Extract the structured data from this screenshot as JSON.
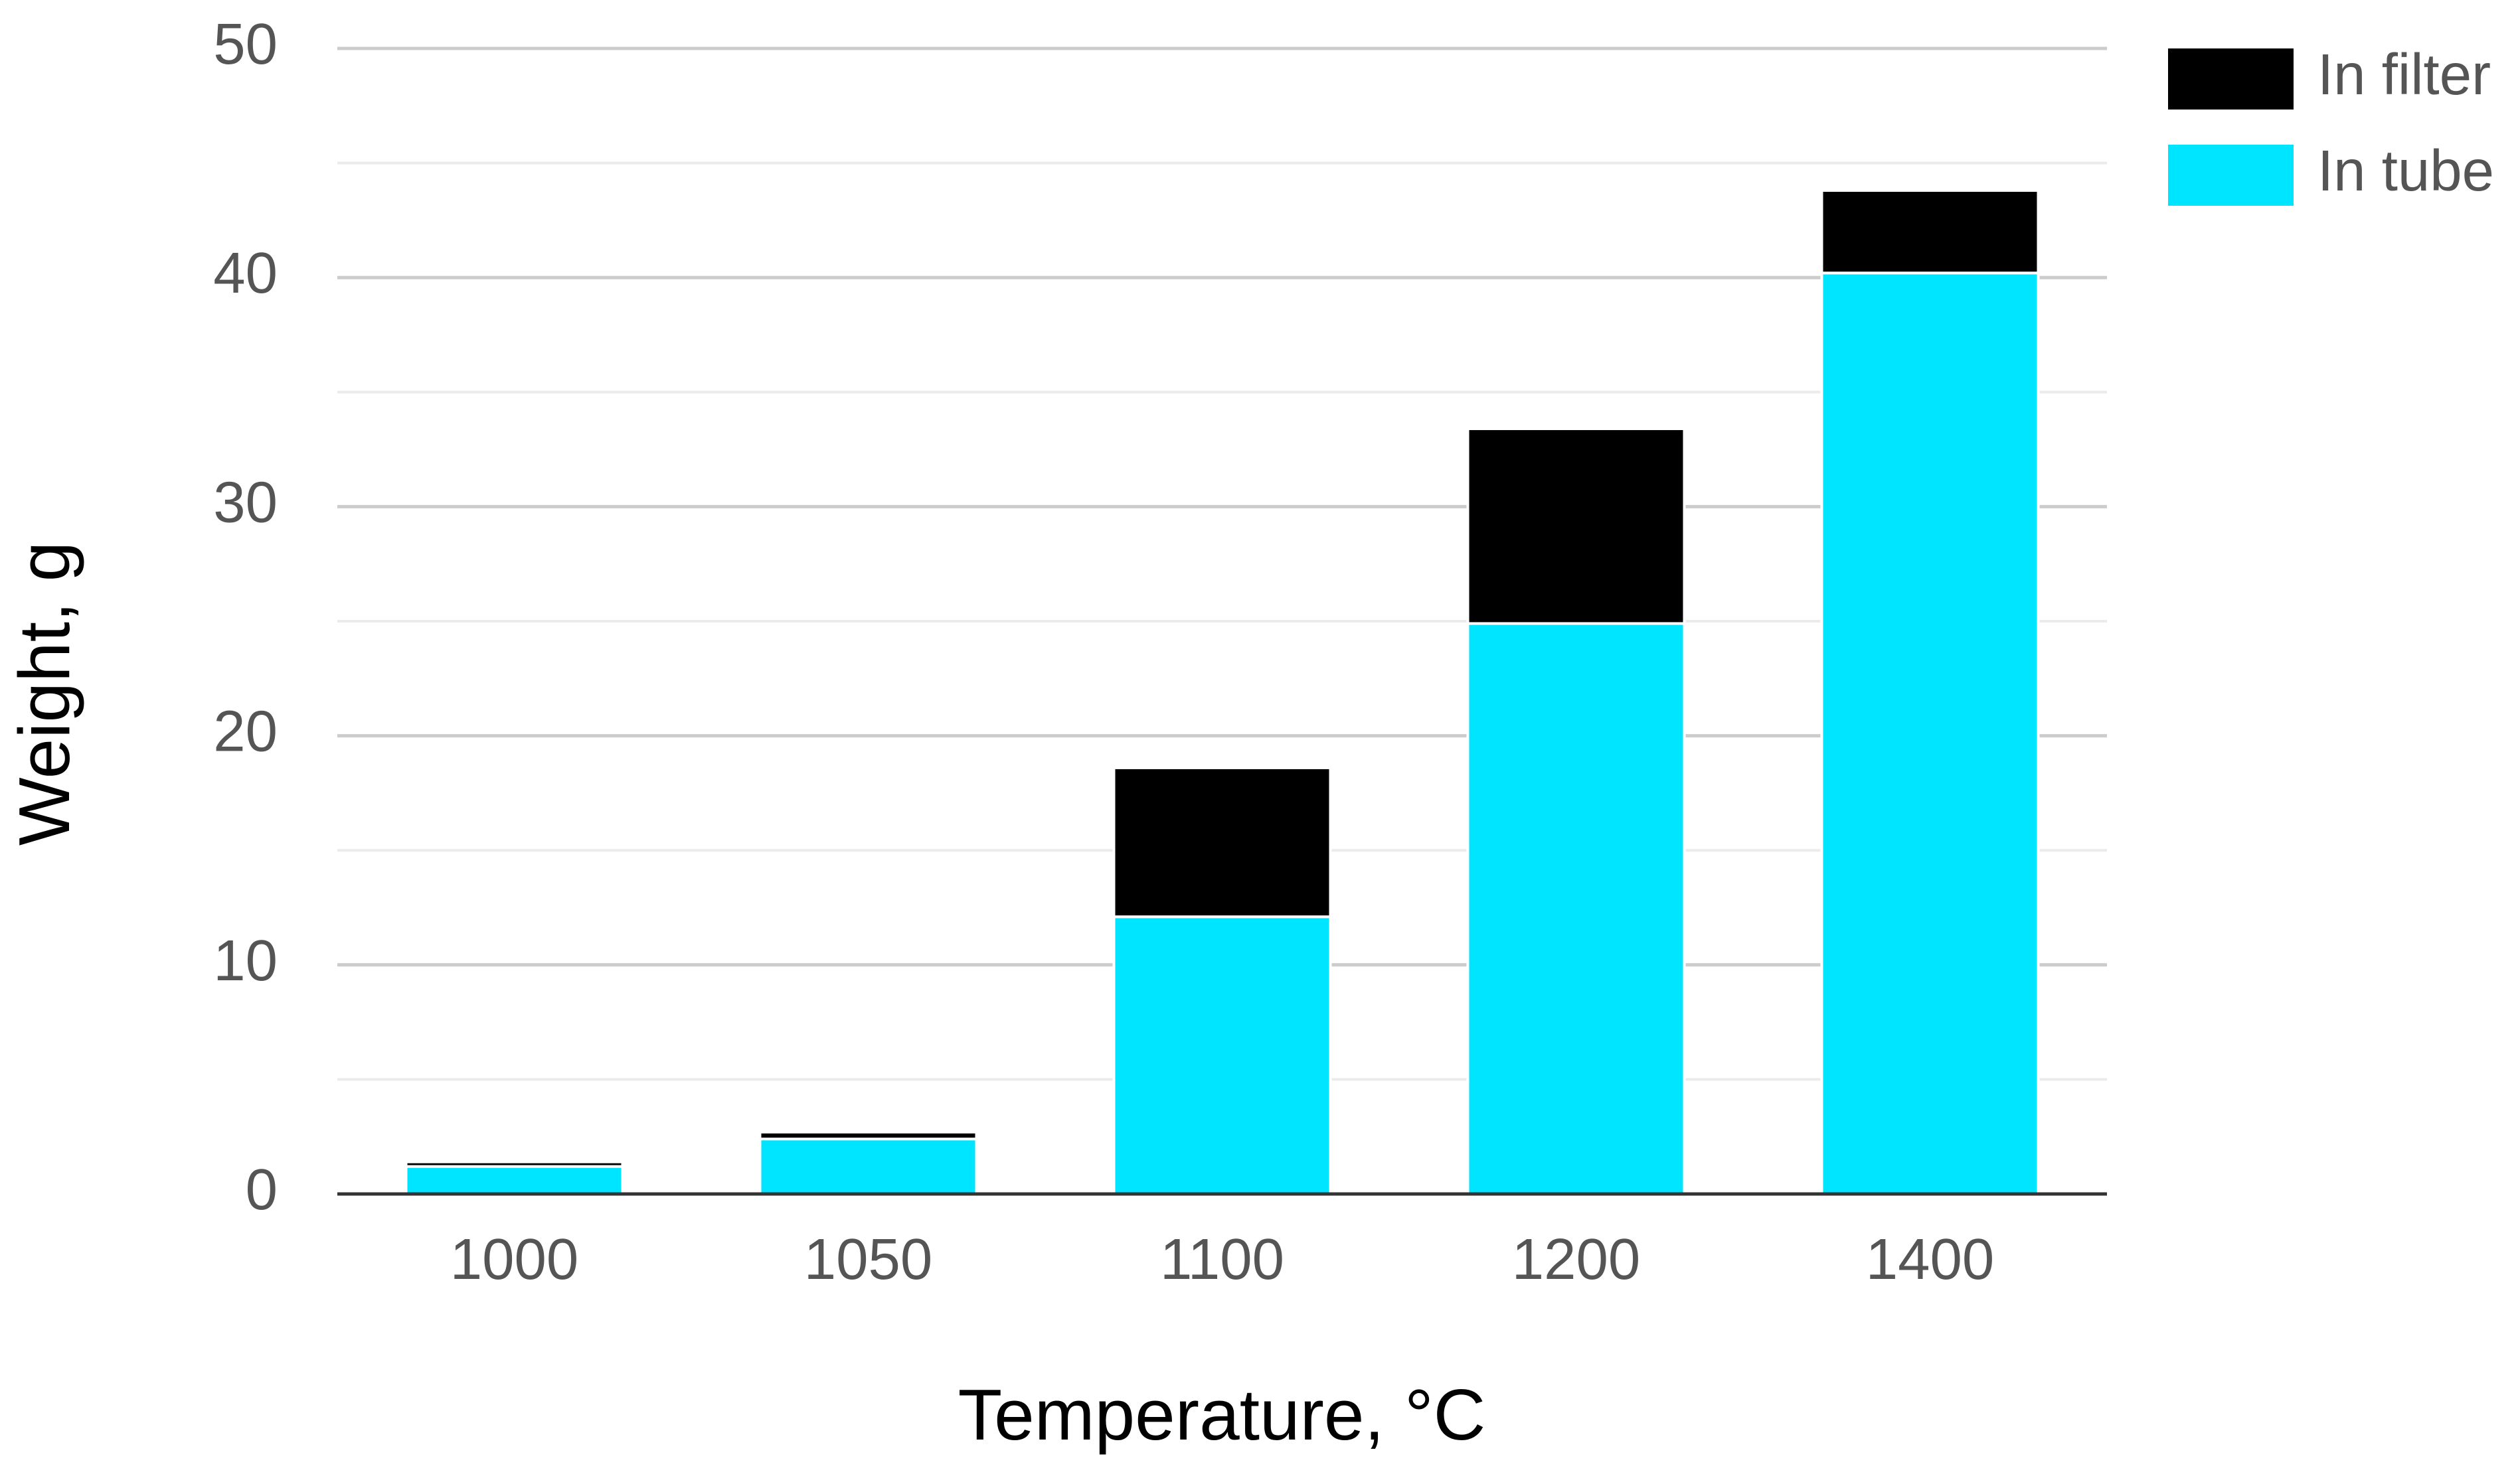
{
  "chart_data": {
    "type": "stacked_bar",
    "x_label": "Temperature, °C",
    "y_label": "Weight, g",
    "categories": [
      "1000",
      "1050",
      "1100",
      "1200",
      "1400"
    ],
    "series": [
      {
        "name": "In filter",
        "color": "#000000",
        "values": [
          0.2,
          0.3,
          6.5,
          8.5,
          3.6
        ]
      },
      {
        "name": "In tube",
        "color": "#00e5ff",
        "values": [
          1.2,
          2.4,
          12.1,
          24.9,
          40.2
        ]
      }
    ],
    "ylim": [
      0,
      50
    ],
    "yticks": [
      0,
      10,
      20,
      30,
      40,
      50
    ],
    "minor_yticks": [
      5,
      15,
      25,
      35,
      45
    ],
    "grid": true,
    "legend": "right"
  }
}
